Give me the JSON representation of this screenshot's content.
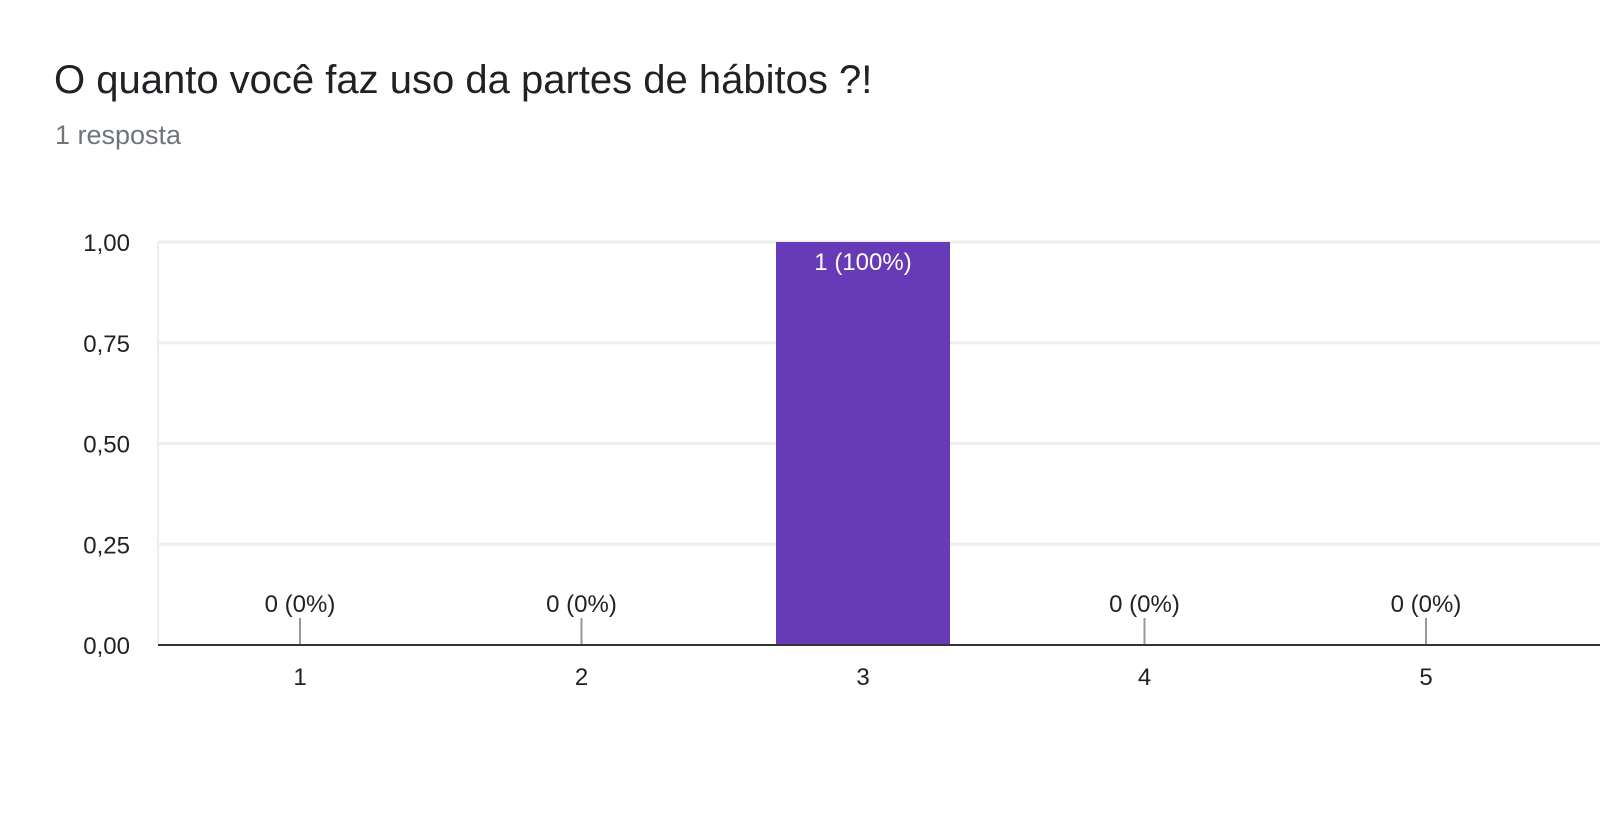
{
  "header": {
    "title": "O quanto você faz uso da partes de hábitos ?!",
    "subtitle": "1 resposta"
  },
  "colors": {
    "bar": "#673ab7",
    "gridline": "#eeeeee",
    "axis": "#333333",
    "tick_marker": "#999999"
  },
  "chart_data": {
    "type": "bar",
    "title": "O quanto você faz uso da partes de hábitos ?!",
    "subtitle": "1 resposta",
    "categories": [
      "1",
      "2",
      "3",
      "4",
      "5"
    ],
    "values": [
      0,
      0,
      1,
      0,
      0
    ],
    "data_labels": [
      "0 (0%)",
      "0 (0%)",
      "1 (100%)",
      "0 (0%)",
      "0 (0%)"
    ],
    "yticks": [
      "0,00",
      "0,25",
      "0,50",
      "0,75",
      "1,00"
    ],
    "ylim": [
      0,
      1
    ],
    "xlabel": "",
    "ylabel": "",
    "grid": true,
    "legend": "none"
  }
}
